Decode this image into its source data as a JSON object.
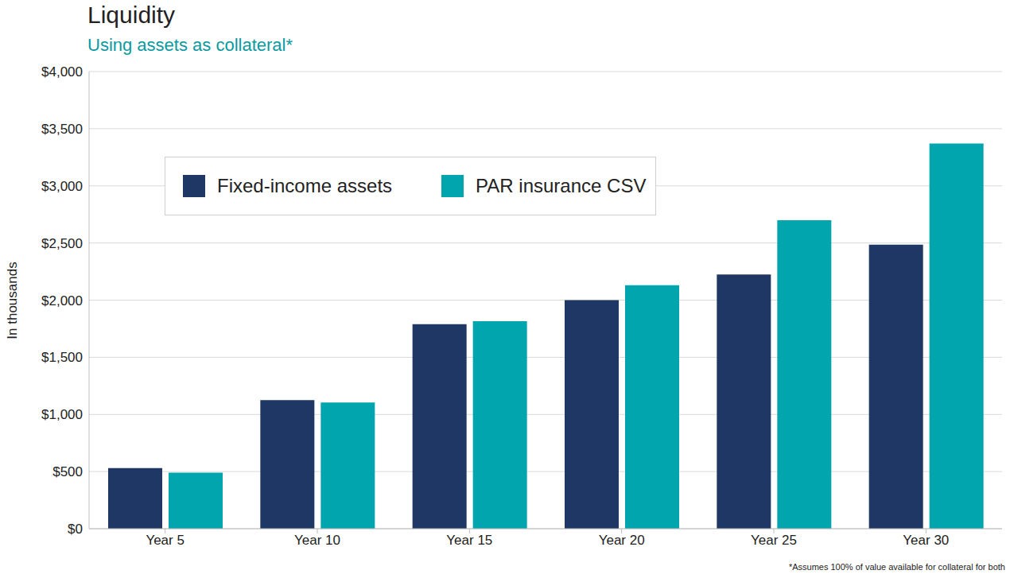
{
  "chart_data": {
    "type": "bar",
    "title": "Liquidity",
    "subtitle": "Using assets as collateral*",
    "y_label": "In thousands",
    "footnote": "*Assumes 100% of value available for collateral for both",
    "categories": [
      "Year 5",
      "Year 10",
      "Year 15",
      "Year 20",
      "Year 25",
      "Year 30"
    ],
    "series": [
      {
        "name": "Fixed-income assets",
        "color": "#1e3764",
        "values": [
          530,
          1125,
          1790,
          2000,
          2225,
          2485
        ]
      },
      {
        "name": "PAR insurance CSV",
        "color": "#00a5ad",
        "values": [
          490,
          1105,
          1815,
          2130,
          2700,
          3370
        ]
      }
    ],
    "ylim": [
      0,
      4000
    ],
    "yticks": [
      {
        "value": 0,
        "label": "$0"
      },
      {
        "value": 500,
        "label": "$500"
      },
      {
        "value": 1000,
        "label": "$1,000"
      },
      {
        "value": 1500,
        "label": "$1,500"
      },
      {
        "value": 2000,
        "label": "$2,000"
      },
      {
        "value": 2500,
        "label": "$2,500"
      },
      {
        "value": 3000,
        "label": "$3,000"
      },
      {
        "value": 3500,
        "label": "$3,500"
      },
      {
        "value": 4000,
        "label": "$4,000"
      }
    ],
    "grid": true,
    "legend": "upper left"
  }
}
